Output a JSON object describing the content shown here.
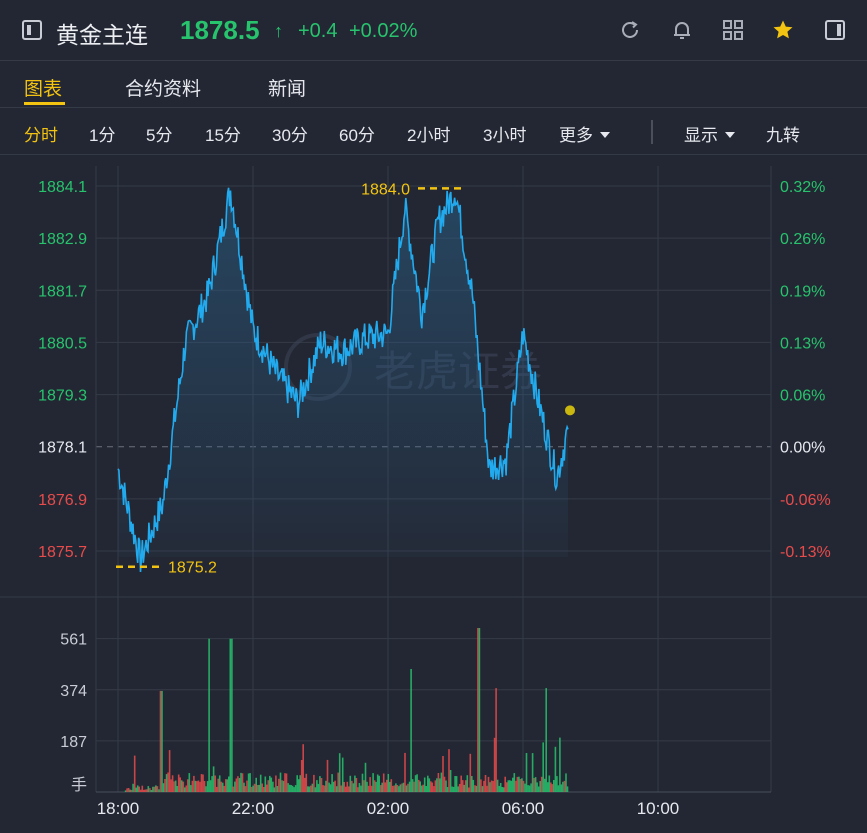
{
  "header": {
    "title": "黄金主连",
    "price": "1878.5",
    "arrow": "↑",
    "change": "+0.4",
    "change_pct": "+0.02%",
    "icons": [
      "sidebar-toggle-icon",
      "refresh-icon",
      "bell-icon",
      "grid-icon",
      "star-icon",
      "panel-icon"
    ]
  },
  "tabs": [
    {
      "label": "图表",
      "active": true
    },
    {
      "label": "合约资料",
      "active": false
    },
    {
      "label": "新闻",
      "active": false
    }
  ],
  "periods": {
    "items": [
      "分时",
      "1分",
      "5分",
      "15分",
      "30分",
      "60分",
      "2小时",
      "3小时"
    ],
    "active": "分时",
    "more": "更多",
    "display": "显示",
    "nine_turn": "九转"
  },
  "colors": {
    "background": "#232733",
    "up": "#27c36d",
    "down": "#e84b4b",
    "line": "#22aaee",
    "accent": "#f2c311",
    "grid": "#363b48"
  },
  "chart_data": [
    {
      "type": "line",
      "name": "price",
      "x": [
        "18:00",
        "18:40",
        "19:20",
        "20:00",
        "20:40",
        "21:20",
        "22:00",
        "22:40",
        "23:20",
        "00:00",
        "00:40",
        "01:20",
        "02:00",
        "02:30",
        "03:00",
        "03:30",
        "04:00",
        "04:30",
        "05:00",
        "05:30",
        "06:00",
        "06:30",
        "07:00",
        "07:20"
      ],
      "values": [
        1877.6,
        1875.5,
        1876.8,
        1880.5,
        1881.6,
        1884.0,
        1880.8,
        1879.8,
        1879.1,
        1880.5,
        1880.3,
        1880.6,
        1880.7,
        1883.6,
        1881.2,
        1883.3,
        1884.0,
        1881.6,
        1877.6,
        1877.8,
        1880.7,
        1879.0,
        1877.4,
        1878.5
      ],
      "x_axis_labels": [
        "18:00",
        "22:00",
        "02:00",
        "06:00",
        "10:00"
      ],
      "y_axis_labels": [
        "1884.1",
        "1882.9",
        "1881.7",
        "1880.5",
        "1879.3",
        "1878.1",
        "1876.9",
        "1875.7"
      ],
      "pct_axis_labels": [
        "0.32%",
        "0.26%",
        "0.19%",
        "0.13%",
        "0.06%",
        "0.00%",
        "-0.06%",
        "-0.13%"
      ],
      "ylim": [
        1875.7,
        1884.1
      ],
      "reference_price": 1878.1,
      "annotations": [
        {
          "label": "1884.0",
          "value": 1884.0
        },
        {
          "label": "1875.2",
          "value": 1875.2
        }
      ],
      "watermark": "老虎证券"
    },
    {
      "type": "bar",
      "name": "volume",
      "unit_label": "手",
      "y_axis_labels": [
        "561",
        "374",
        "187"
      ],
      "ylim": [
        0,
        600
      ],
      "peaks": [
        {
          "time": "19:15",
          "value": 370
        },
        {
          "time": "20:40",
          "value": 561
        },
        {
          "time": "21:20",
          "value": 561
        },
        {
          "time": "02:40",
          "value": 450
        },
        {
          "time": "04:40",
          "value": 600
        },
        {
          "time": "05:10",
          "value": 380
        },
        {
          "time": "06:40",
          "value": 380
        }
      ],
      "base_level": 55
    }
  ]
}
